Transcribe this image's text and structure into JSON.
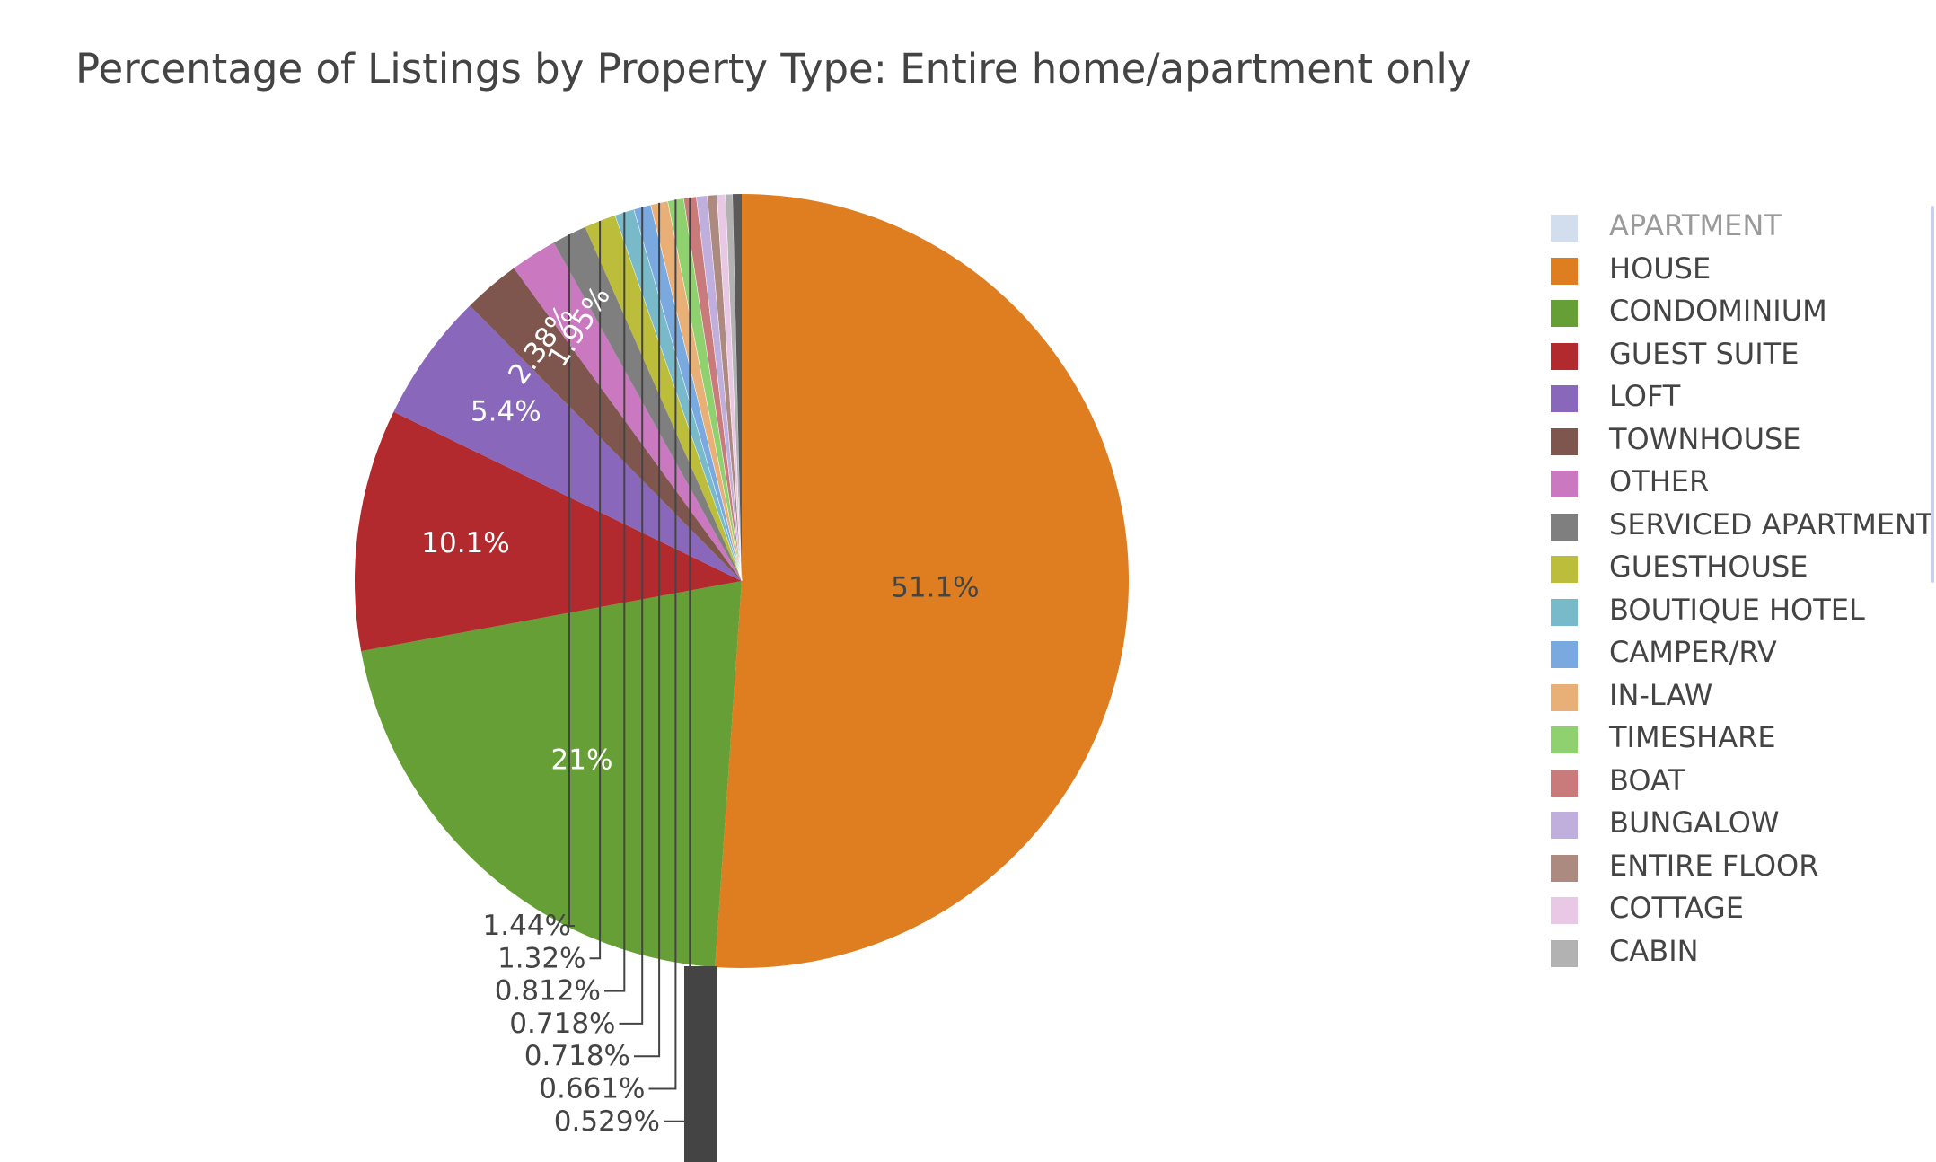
{
  "chart_data": {
    "type": "pie",
    "title": "Percentage of Listings by Property Type: Entire home/apartment only",
    "slices": [
      {
        "label": "APARTMENT",
        "value": null,
        "color": "#a6bddb",
        "visible": false
      },
      {
        "label": "HOUSE",
        "value": 51.1,
        "text": "51.1%",
        "color": "#de7e21",
        "text_color": "#444444"
      },
      {
        "label": "CONDOMINIUM",
        "value": 21,
        "text": "21%",
        "color": "#659f35",
        "text_color": "#ffffff"
      },
      {
        "label": "GUEST SUITE",
        "value": 10.1,
        "text": "10.1%",
        "color": "#b22a2e",
        "text_color": "#ffffff"
      },
      {
        "label": "LOFT",
        "value": 5.4,
        "text": "5.4%",
        "color": "#8968bb",
        "text_color": "#ffffff"
      },
      {
        "label": "TOWNHOUSE",
        "value": 2.38,
        "text": "2.38%",
        "color": "#7e564d",
        "text_color": "#ffffff"
      },
      {
        "label": "OTHER",
        "value": 1.95,
        "text": "1.95%",
        "color": "#ca78c0",
        "text_color": "#ffffff"
      },
      {
        "label": "SERVICED APARTMENT",
        "value": 1.44,
        "text": "1.44%",
        "color": "#7f7f7f"
      },
      {
        "label": "GUESTHOUSE",
        "value": 1.32,
        "text": "1.32%",
        "color": "#bcbd3a"
      },
      {
        "label": "BOUTIQUE HOTEL",
        "value": 0.812,
        "text": "0.812%",
        "color": "#78bac9"
      },
      {
        "label": "CAMPER/RV",
        "value": 0.718,
        "text": "0.718%",
        "color": "#7aa9df"
      },
      {
        "label": "IN-LAW",
        "value": 0.718,
        "text": "0.718%",
        "color": "#e8b077"
      },
      {
        "label": "TIMESHARE",
        "value": 0.661,
        "text": "0.661%",
        "color": "#8fd06f"
      },
      {
        "label": "BOAT",
        "value": 0.529,
        "text": "0.529%",
        "color": "#c97a7a"
      },
      {
        "label": "BUNGALOW",
        "value": null,
        "color": "#c0aedc"
      },
      {
        "label": "ENTIRE FLOOR",
        "value": null,
        "color": "#ad8a80"
      },
      {
        "label": "COTTAGE",
        "value": null,
        "color": "#e9c8e6"
      },
      {
        "label": "CABIN",
        "value": null,
        "color": "#b2b2b2"
      }
    ],
    "legend_position": "right",
    "direction": "clockwise",
    "rotation_start": "top"
  }
}
